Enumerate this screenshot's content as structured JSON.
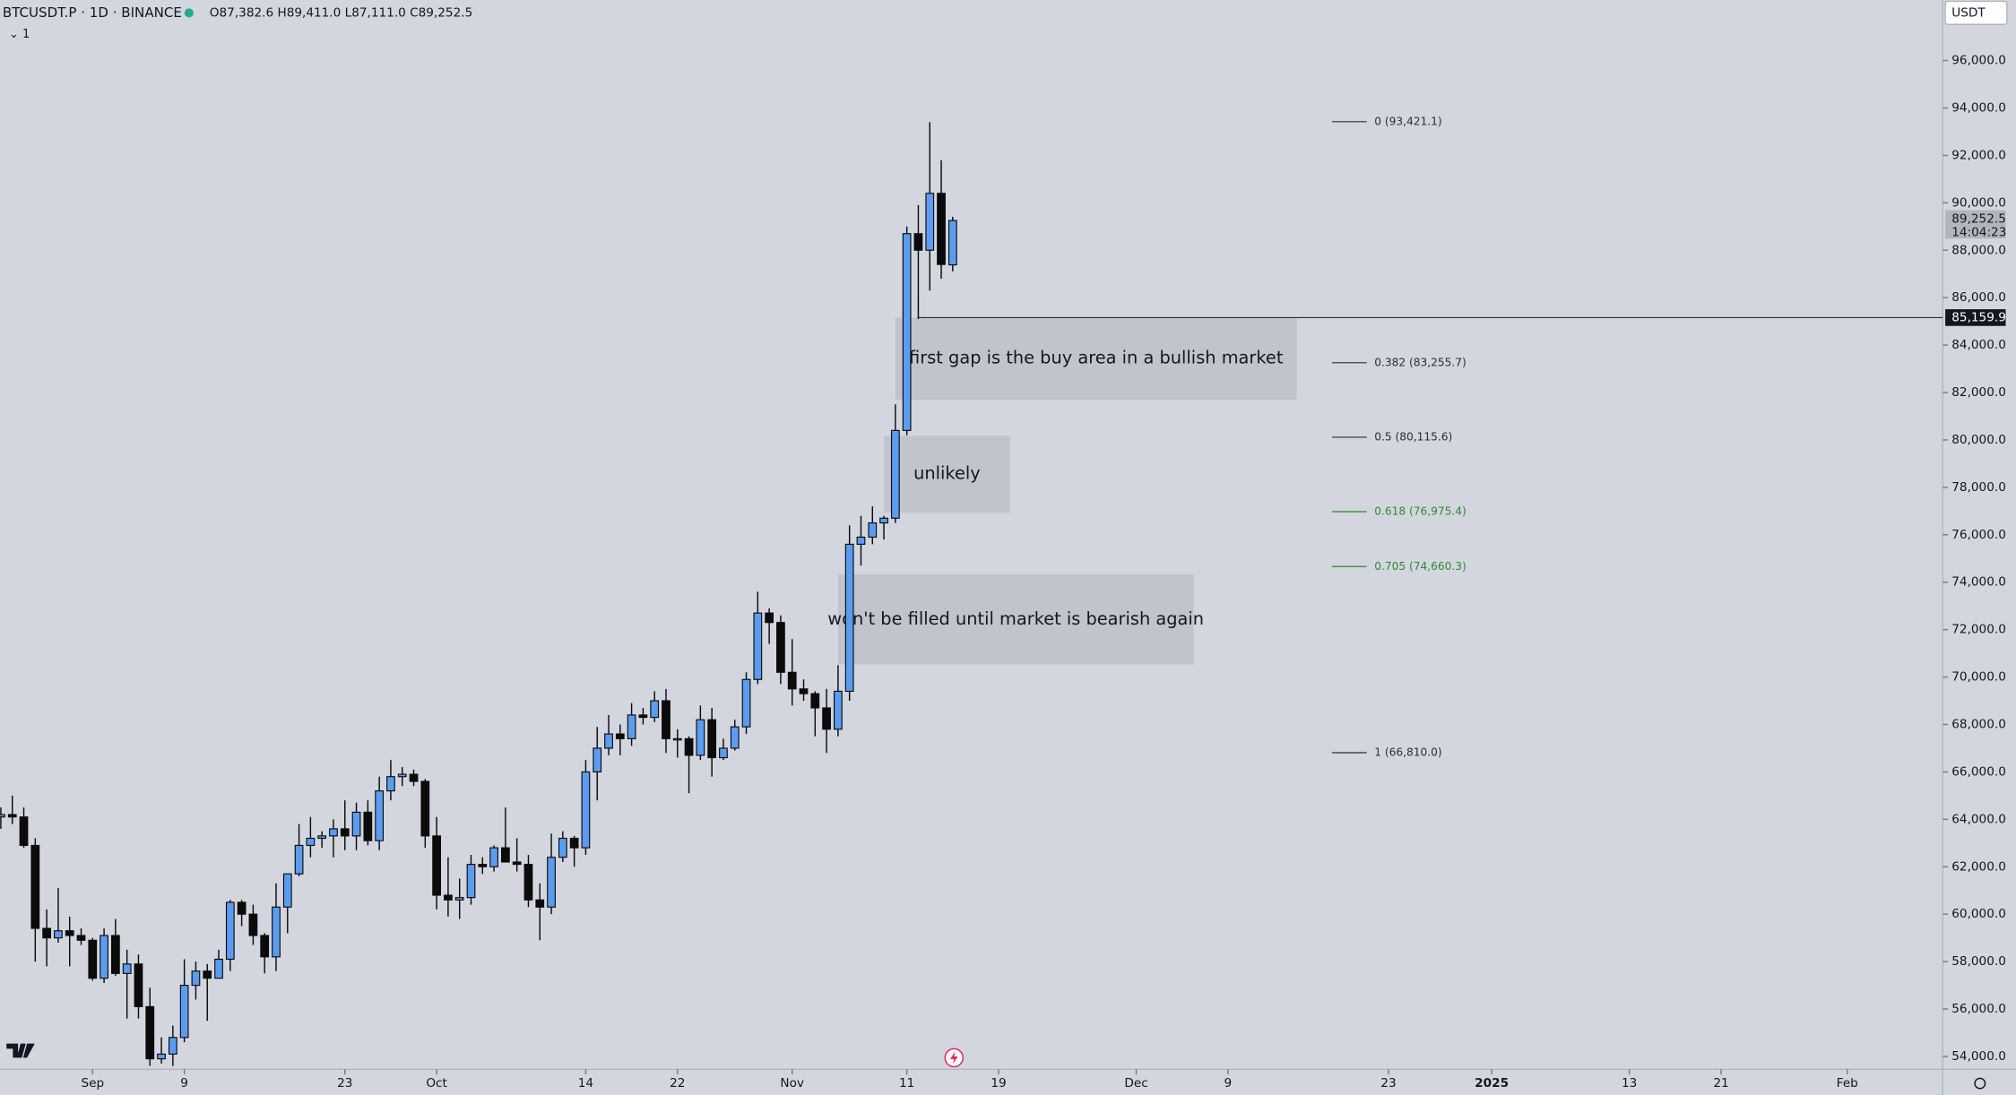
{
  "chart_data": {
    "type": "candlestick",
    "symbol": "BTCUSDT.P · 1D · BINANCE",
    "ohlc_text": "O87,382.6 H89,411.0 L87,111.0 C89,252.5",
    "indicator": "⌄ 1",
    "currency": "USDT",
    "x": [
      "Aug 24",
      "Aug 25",
      "Aug 26",
      "Aug 27",
      "Aug 28",
      "Aug 29",
      "Aug 30",
      "Aug 31",
      "Sep 1",
      "Sep 2",
      "Sep 3",
      "Sep 4",
      "Sep 5",
      "Sep 6",
      "Sep 7",
      "Sep 8",
      "Sep 9",
      "Sep 10",
      "Sep 11",
      "Sep 12",
      "Sep 13",
      "Sep 14",
      "Sep 15",
      "Sep 16",
      "Sep 17",
      "Sep 18",
      "Sep 19",
      "Sep 20",
      "Sep 21",
      "Sep 22",
      "Sep 23",
      "Sep 24",
      "Sep 25",
      "Sep 26",
      "Sep 27",
      "Sep 28",
      "Sep 29",
      "Sep 30",
      "Oct 1",
      "Oct 2",
      "Oct 3",
      "Oct 4",
      "Oct 5",
      "Oct 6",
      "Oct 7",
      "Oct 8",
      "Oct 9",
      "Oct 10",
      "Oct 11",
      "Oct 12",
      "Oct 13",
      "Oct 14",
      "Oct 15",
      "Oct 16",
      "Oct 17",
      "Oct 18",
      "Oct 19",
      "Oct 20",
      "Oct 21",
      "Oct 22",
      "Oct 23",
      "Oct 24",
      "Oct 25",
      "Oct 26",
      "Oct 27",
      "Oct 28",
      "Oct 29",
      "Oct 30",
      "Oct 31",
      "Nov 1",
      "Nov 2",
      "Nov 3",
      "Nov 4",
      "Nov 5",
      "Nov 6",
      "Nov 7",
      "Nov 8",
      "Nov 9",
      "Nov 10",
      "Nov 11",
      "Nov 12",
      "Nov 13",
      "Nov 14",
      "Nov 15"
    ],
    "open": [
      64100,
      64200,
      64100,
      62900,
      59400,
      59000,
      59300,
      59100,
      58900,
      57300,
      59100,
      57500,
      57900,
      56100,
      53900,
      54100,
      54800,
      57000,
      57600,
      57300,
      58100,
      60500,
      60000,
      59100,
      58200,
      60300,
      61700,
      62900,
      63200,
      63300,
      63600,
      63300,
      64300,
      63100,
      65200,
      65800,
      65900,
      65600,
      63300,
      60800,
      60600,
      60700,
      62100,
      62000,
      62800,
      62200,
      62100,
      60600,
      60300,
      62400,
      63200,
      62800,
      66000,
      67000,
      67600,
      67400,
      68400,
      68300,
      69000,
      67400,
      67400,
      66700,
      68200,
      66600,
      67000,
      67900,
      69900,
      72700,
      72300,
      70200,
      69500,
      69300,
      68700,
      67800,
      69400,
      75600,
      75900,
      76500,
      76700,
      80400,
      88700,
      88000,
      90400,
      87382.6
    ],
    "high": [
      64500,
      65000,
      64500,
      63200,
      60200,
      61100,
      59900,
      59400,
      59000,
      59400,
      59800,
      58500,
      58300,
      56900,
      54800,
      55300,
      58100,
      58000,
      57900,
      58500,
      60600,
      60600,
      60400,
      59200,
      61300,
      61700,
      63800,
      64100,
      63500,
      64000,
      64800,
      64700,
      64800,
      65800,
      66500,
      66200,
      66100,
      65700,
      64100,
      62400,
      61500,
      62500,
      62400,
      62900,
      64500,
      63200,
      62500,
      61300,
      63400,
      63500,
      63300,
      66500,
      67900,
      68400,
      68000,
      68900,
      68700,
      69400,
      69500,
      67800,
      67500,
      68800,
      68700,
      67400,
      68200,
      70200,
      73600,
      72900,
      72600,
      71600,
      69900,
      69400,
      69500,
      70500,
      76400,
      76800,
      77200,
      76800,
      81500,
      89000,
      89900,
      93400,
      91800,
      89411
    ],
    "low": [
      63600,
      63800,
      62800,
      58000,
      57800,
      58800,
      57800,
      58700,
      57200,
      57100,
      57400,
      55600,
      55600,
      53600,
      53700,
      53600,
      54600,
      56400,
      55500,
      57300,
      57600,
      59500,
      58700,
      57500,
      57600,
      59200,
      61600,
      62400,
      62800,
      62400,
      62700,
      62700,
      62900,
      62700,
      64800,
      65400,
      65400,
      62800,
      60200,
      59900,
      59800,
      60400,
      61700,
      61800,
      62200,
      61800,
      60300,
      58900,
      60000,
      62200,
      62000,
      62500,
      64800,
      66700,
      66700,
      67100,
      68000,
      68100,
      66800,
      66600,
      65100,
      66500,
      65800,
      66500,
      66900,
      67600,
      69700,
      71400,
      69700,
      68800,
      69000,
      67500,
      66800,
      67500,
      69000,
      74700,
      75600,
      75800,
      76500,
      80200,
      85100,
      86300,
      86800,
      87111
    ],
    "close": [
      64200,
      64100,
      62900,
      59400,
      59000,
      59300,
      59100,
      58900,
      57300,
      59100,
      57500,
      57900,
      56100,
      53900,
      54100,
      54800,
      57000,
      57600,
      57300,
      58100,
      60500,
      60000,
      59100,
      58200,
      60300,
      61700,
      62900,
      63200,
      63300,
      63600,
      63300,
      64300,
      63100,
      65200,
      65800,
      65900,
      65600,
      63300,
      60800,
      60600,
      60700,
      62100,
      62000,
      62800,
      62200,
      62100,
      60600,
      60300,
      62400,
      63200,
      62800,
      66000,
      67000,
      67600,
      67400,
      68400,
      68300,
      69000,
      67400,
      67400,
      66700,
      68200,
      66600,
      67000,
      67900,
      69900,
      72700,
      72300,
      70200,
      69500,
      69300,
      68700,
      67800,
      69400,
      75600,
      75900,
      76500,
      76700,
      80400,
      88700,
      88000,
      90400,
      87400,
      89252.5
    ],
    "up_color": "#5b9cf0",
    "down_color": "#0b0b0b",
    "ylim": [
      53458,
      98553
    ],
    "yticks": [
      {
        "value": 54000,
        "label": "54,000.0"
      },
      {
        "value": 56000,
        "label": "56,000.0"
      },
      {
        "value": 58000,
        "label": "58,000.0"
      },
      {
        "value": 60000,
        "label": "60,000.0"
      },
      {
        "value": 62000,
        "label": "62,000.0"
      },
      {
        "value": 64000,
        "label": "64,000.0"
      },
      {
        "value": 66000,
        "label": "66,000.0"
      },
      {
        "value": 68000,
        "label": "68,000.0"
      },
      {
        "value": 70000,
        "label": "70,000.0"
      },
      {
        "value": 72000,
        "label": "72,000.0"
      },
      {
        "value": 74000,
        "label": "74,000.0"
      },
      {
        "value": 76000,
        "label": "76,000.0"
      },
      {
        "value": 78000,
        "label": "78,000.0"
      },
      {
        "value": 80000,
        "label": "80,000.0"
      },
      {
        "value": 82000,
        "label": "82,000.0"
      },
      {
        "value": 84000,
        "label": "84,000.0"
      },
      {
        "value": 86000,
        "label": "86,000.0"
      },
      {
        "value": 88000,
        "label": "88,000.0"
      },
      {
        "value": 90000,
        "label": "90,000.0"
      },
      {
        "value": 92000,
        "label": "92,000.0"
      },
      {
        "value": 94000,
        "label": "94,000.0"
      },
      {
        "value": 96000,
        "label": "96,000.0"
      }
    ],
    "xticks": [
      {
        "value": "Sep 1",
        "label": "Sep"
      },
      {
        "value": "Sep 9",
        "label": "9"
      },
      {
        "value": "Sep 23",
        "label": "23"
      },
      {
        "value": "Oct 1",
        "label": "Oct"
      },
      {
        "value": "Oct 14",
        "label": "14"
      },
      {
        "value": "Oct 22",
        "label": "22"
      },
      {
        "value": "Nov 1",
        "label": "Nov"
      },
      {
        "value": "Nov 11",
        "label": "11"
      },
      {
        "value": "Nov 19",
        "label": "19"
      },
      {
        "value": "Dec 1",
        "label": "Dec"
      },
      {
        "value": "Dec 9",
        "label": "9"
      },
      {
        "value": "Dec 23",
        "label": "23"
      },
      {
        "value": "Jan 1",
        "label": "2025"
      },
      {
        "value": "Jan 13",
        "label": "13"
      },
      {
        "value": "Jan 21",
        "label": "21"
      },
      {
        "value": "Feb 1",
        "label": "Feb"
      }
    ],
    "grid": false,
    "fib_levels": [
      {
        "value": 93421.1,
        "label": "0 (93,421.1)",
        "color": "#2a2e39"
      },
      {
        "value": 83255.7,
        "label": "0.382 (83,255.7)",
        "color": "#2a2e39"
      },
      {
        "value": 80115.6,
        "label": "0.5 (80,115.6)",
        "color": "#2a2e39"
      },
      {
        "value": 76975.4,
        "label": "0.618 (76,975.4)",
        "color": "#2e8b2e"
      },
      {
        "value": 74660.3,
        "label": "0.705 (74,660.3)",
        "color": "#2e8b2e"
      },
      {
        "value": 66810.0,
        "label": "1 (66,810.0)",
        "color": "#2a2e39"
      }
    ],
    "boxes": [
      {
        "text": "first gap is the buy area in a bullish market",
        "top": 85160,
        "bottom": 81700,
        "from": "Nov 10",
        "to": "Dec 15"
      },
      {
        "text": "unlikely",
        "top": 80180,
        "bottom": 76930,
        "from": "Nov 9",
        "to": "Nov 20"
      },
      {
        "text": "won't be filled until market is bearish again",
        "top": 74330,
        "bottom": 70530,
        "from": "Nov 5",
        "to": "Dec 6"
      }
    ],
    "price_line": {
      "value": 85159.9,
      "label": "85,159.9",
      "from": "Nov 12"
    },
    "last_price": {
      "value": 89252.5,
      "label": "89,252.5",
      "countdown": "14:04:23"
    }
  }
}
